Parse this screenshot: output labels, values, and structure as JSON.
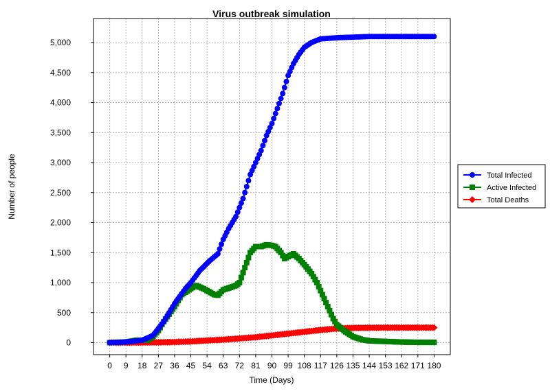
{
  "chart_data": {
    "type": "line",
    "title": "Virus outbreak simulation",
    "xlabel": "Time (Days)",
    "ylabel": "Number of people",
    "xlim": [
      -9,
      189
    ],
    "ylim": [
      -200,
      5400
    ],
    "x_ticks": [
      0,
      9,
      18,
      27,
      36,
      45,
      54,
      63,
      72,
      81,
      90,
      99,
      108,
      117,
      126,
      135,
      144,
      153,
      162,
      171,
      180
    ],
    "x_tick_labels": [
      "0",
      "9",
      "18",
      "27",
      "36",
      "45",
      "54",
      "63",
      "72",
      "81",
      "90",
      "99",
      "108",
      "117",
      "126",
      "135",
      "144",
      "153",
      "162",
      "171",
      "180"
    ],
    "y_ticks": [
      0,
      500,
      1000,
      1500,
      2000,
      2500,
      3000,
      3500,
      4000,
      4500,
      5000
    ],
    "y_tick_labels": [
      "0",
      "500",
      "1,000",
      "1,500",
      "2,000",
      "2,500",
      "3,000",
      "3,500",
      "4,000",
      "4,500",
      "5,000"
    ],
    "grid": true,
    "legend_position": "right",
    "series": [
      {
        "name": "Total Infected",
        "color": "#0000ff",
        "marker": "circle",
        "points": [
          [
            0,
            0
          ],
          [
            9,
            10
          ],
          [
            18,
            40
          ],
          [
            24,
            120
          ],
          [
            30,
            350
          ],
          [
            36,
            650
          ],
          [
            42,
            900
          ],
          [
            45,
            1000
          ],
          [
            50,
            1200
          ],
          [
            55,
            1350
          ],
          [
            60,
            1480
          ],
          [
            63,
            1720
          ],
          [
            66,
            1900
          ],
          [
            70,
            2100
          ],
          [
            74,
            2400
          ],
          [
            78,
            2800
          ],
          [
            81,
            3000
          ],
          [
            84,
            3200
          ],
          [
            87,
            3450
          ],
          [
            90,
            3650
          ],
          [
            93,
            3900
          ],
          [
            96,
            4150
          ],
          [
            99,
            4450
          ],
          [
            102,
            4650
          ],
          [
            105,
            4800
          ],
          [
            108,
            4920
          ],
          [
            112,
            5000
          ],
          [
            117,
            5060
          ],
          [
            126,
            5080
          ],
          [
            135,
            5090
          ],
          [
            144,
            5100
          ],
          [
            153,
            5100
          ],
          [
            162,
            5100
          ],
          [
            171,
            5100
          ],
          [
            180,
            5100
          ]
        ]
      },
      {
        "name": "Active Infected",
        "color": "#008000",
        "marker": "square",
        "points": [
          [
            0,
            0
          ],
          [
            9,
            10
          ],
          [
            15,
            40
          ],
          [
            21,
            40
          ],
          [
            24,
            100
          ],
          [
            27,
            200
          ],
          [
            30,
            350
          ],
          [
            36,
            600
          ],
          [
            40,
            800
          ],
          [
            45,
            900
          ],
          [
            48,
            950
          ],
          [
            52,
            900
          ],
          [
            55,
            850
          ],
          [
            58,
            800
          ],
          [
            60,
            790
          ],
          [
            63,
            880
          ],
          [
            67,
            920
          ],
          [
            70,
            950
          ],
          [
            72,
            1000
          ],
          [
            75,
            1250
          ],
          [
            78,
            1500
          ],
          [
            81,
            1600
          ],
          [
            84,
            1600
          ],
          [
            87,
            1630
          ],
          [
            90,
            1620
          ],
          [
            92,
            1600
          ],
          [
            95,
            1500
          ],
          [
            97,
            1400
          ],
          [
            100,
            1450
          ],
          [
            102,
            1480
          ],
          [
            105,
            1400
          ],
          [
            108,
            1300
          ],
          [
            112,
            1150
          ],
          [
            115,
            1000
          ],
          [
            118,
            800
          ],
          [
            121,
            600
          ],
          [
            124,
            400
          ],
          [
            126,
            300
          ],
          [
            130,
            200
          ],
          [
            135,
            100
          ],
          [
            140,
            50
          ],
          [
            144,
            30
          ],
          [
            153,
            20
          ],
          [
            162,
            10
          ],
          [
            171,
            5
          ],
          [
            180,
            5
          ]
        ]
      },
      {
        "name": "Total Deaths",
        "color": "#ff0000",
        "marker": "diamond",
        "points": [
          [
            0,
            0
          ],
          [
            9,
            0
          ],
          [
            18,
            2
          ],
          [
            27,
            5
          ],
          [
            36,
            10
          ],
          [
            45,
            20
          ],
          [
            54,
            35
          ],
          [
            63,
            50
          ],
          [
            72,
            70
          ],
          [
            81,
            90
          ],
          [
            90,
            120
          ],
          [
            99,
            150
          ],
          [
            108,
            180
          ],
          [
            117,
            210
          ],
          [
            126,
            235
          ],
          [
            135,
            245
          ],
          [
            144,
            248
          ],
          [
            153,
            250
          ],
          [
            162,
            250
          ],
          [
            171,
            250
          ],
          [
            180,
            250
          ]
        ]
      }
    ]
  }
}
